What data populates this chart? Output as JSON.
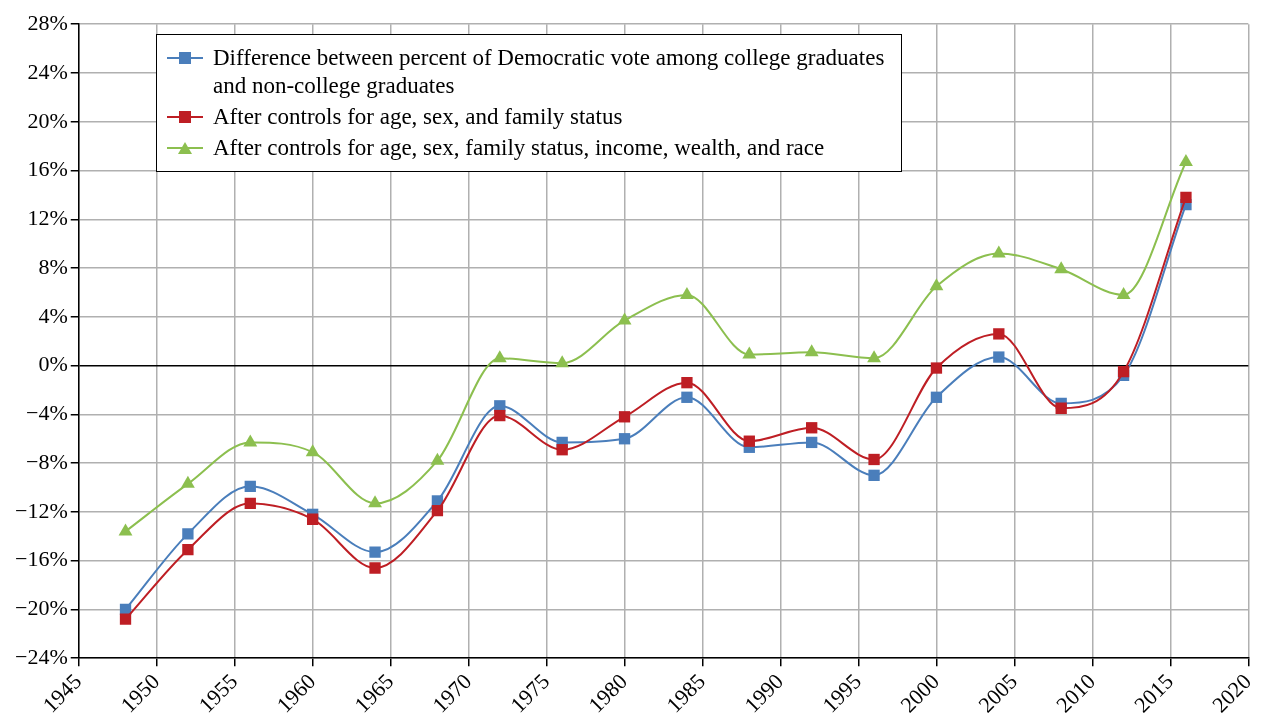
{
  "chart_data": {
    "type": "line",
    "x": [
      1948,
      1952,
      1956,
      1960,
      1964,
      1968,
      1972,
      1976,
      1980,
      1984,
      1988,
      1992,
      1996,
      2000,
      2004,
      2008,
      2012,
      2016
    ],
    "series": [
      {
        "name": "Difference between percent of Democratic vote among college graduates and non-college graduates",
        "color": "#4a7ebb",
        "marker": "square",
        "values": [
          -20.0,
          -13.8,
          -9.9,
          -12.2,
          -15.3,
          -11.1,
          -3.3,
          -6.3,
          -6.0,
          -2.6,
          -6.7,
          -6.3,
          -9.0,
          -2.6,
          0.7,
          -3.1,
          -0.8,
          13.2
        ]
      },
      {
        "name": "After controls for age, sex, and family status",
        "color": "#be1e24",
        "marker": "square",
        "values": [
          -20.8,
          -15.1,
          -11.3,
          -12.6,
          -16.6,
          -11.9,
          -4.1,
          -6.9,
          -4.2,
          -1.4,
          -6.2,
          -5.1,
          -7.7,
          -0.2,
          2.6,
          -3.5,
          -0.5,
          13.8
        ]
      },
      {
        "name": "After controls for age, sex, family status, income, wealth, and race",
        "color": "#8cbf4f",
        "marker": "triangle",
        "values": [
          -13.6,
          -9.7,
          -6.3,
          -7.1,
          -11.3,
          -7.8,
          0.6,
          0.2,
          3.7,
          5.8,
          0.9,
          1.1,
          0.6,
          6.5,
          9.2,
          7.9,
          5.8,
          16.7
        ]
      }
    ],
    "xlim": [
      1945,
      2020
    ],
    "xticks": [
      1945,
      1950,
      1955,
      1960,
      1965,
      1970,
      1975,
      1980,
      1985,
      1990,
      1995,
      2000,
      2005,
      2010,
      2015,
      2020
    ],
    "ylim": [
      -24,
      28
    ],
    "yticks": [
      {
        "value": -24,
        "label": "−24%"
      },
      {
        "value": -20,
        "label": "−20%"
      },
      {
        "value": -16,
        "label": "−16%"
      },
      {
        "value": -12,
        "label": "−12%"
      },
      {
        "value": -8,
        "label": "−8%"
      },
      {
        "value": -4,
        "label": "−4%"
      },
      {
        "value": 0,
        "label": "0%"
      },
      {
        "value": 4,
        "label": "4%"
      },
      {
        "value": 8,
        "label": "8%"
      },
      {
        "value": 12,
        "label": "12%"
      },
      {
        "value": 16,
        "label": "16%"
      },
      {
        "value": 20,
        "label": "20%"
      },
      {
        "value": 24,
        "label": "24%"
      },
      {
        "value": 28,
        "label": "28%"
      }
    ],
    "grid": true,
    "legend": "top left"
  }
}
